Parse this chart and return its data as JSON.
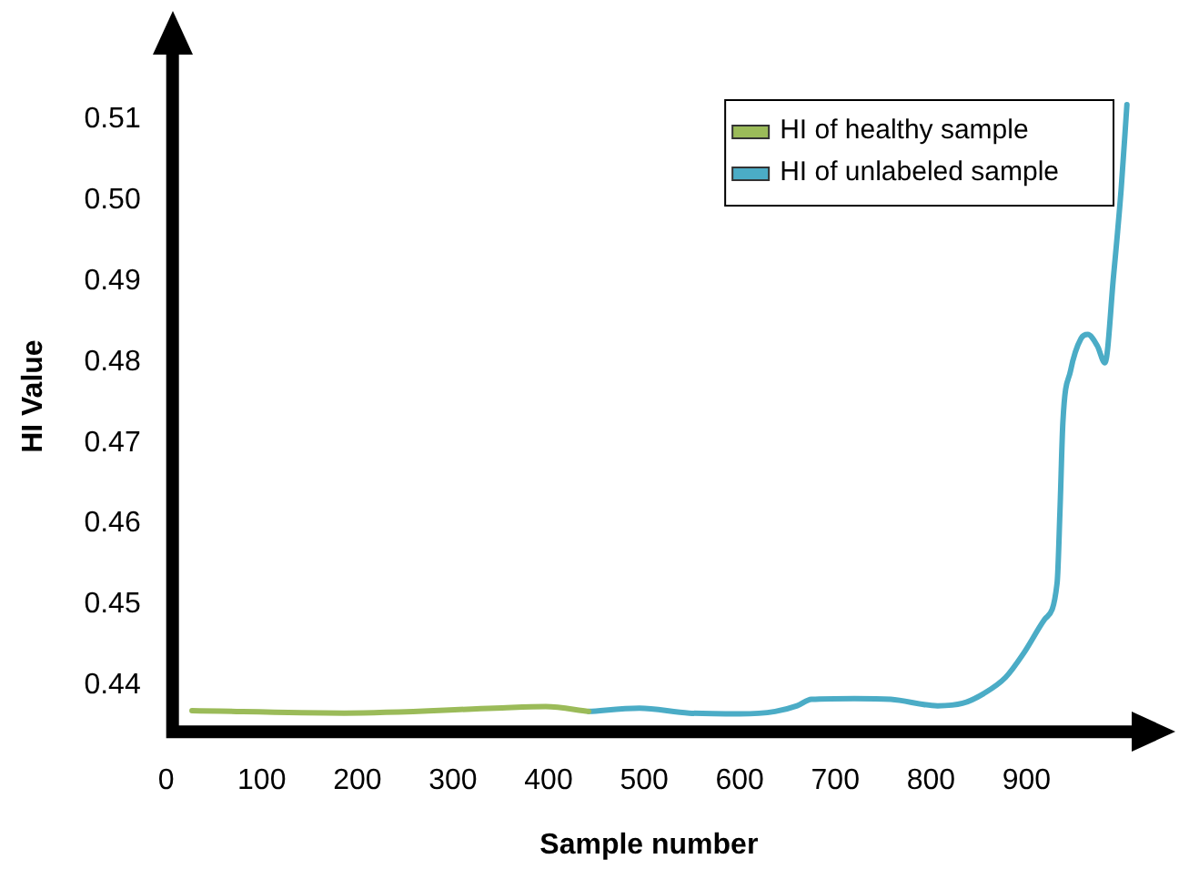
{
  "chart_data": {
    "type": "line",
    "xlabel": "Sample number",
    "ylabel": "HI Value",
    "xlim": [
      0,
      1010
    ],
    "xticks": [
      0,
      100,
      200,
      300,
      400,
      500,
      600,
      700,
      800,
      900
    ],
    "ylim": [
      0.4335,
      0.518
    ],
    "yticks": [
      0.44,
      0.45,
      0.46,
      0.47,
      0.48,
      0.49,
      {
        "value": 0.5,
        "label": "0.50"
      },
      0.51
    ],
    "grid": false,
    "legend": "top right",
    "marker": "none",
    "line_style": "solid",
    "series": [
      {
        "name": "HI of healthy sample",
        "color": "#9bbb59",
        "x": [
          27,
          186,
          344,
          397,
          442
        ],
        "values": [
          0.4369,
          0.4366,
          0.4372,
          0.4374,
          0.4368
        ]
      },
      {
        "name": "HI of unlabeled sample",
        "color": "#4bacc6",
        "x": [
          442,
          495,
          547,
          600,
          637,
          660,
          675,
          720,
          758,
          807,
          833,
          855,
          878,
          897,
          919,
          932,
          935,
          938,
          946,
          957,
          964,
          974,
          982,
          991,
          999,
          1005
        ],
        "values": [
          0.4368,
          0.4372,
          0.4366,
          0.4365,
          0.4368,
          0.4375,
          0.4383,
          0.4384,
          0.4383,
          0.4375,
          0.4378,
          0.439,
          0.441,
          0.444,
          0.4482,
          0.4527,
          0.4617,
          0.4725,
          0.4789,
          0.4829,
          0.4834,
          0.482,
          0.4799,
          0.4906,
          0.5014,
          0.5118
        ]
      }
    ]
  }
}
